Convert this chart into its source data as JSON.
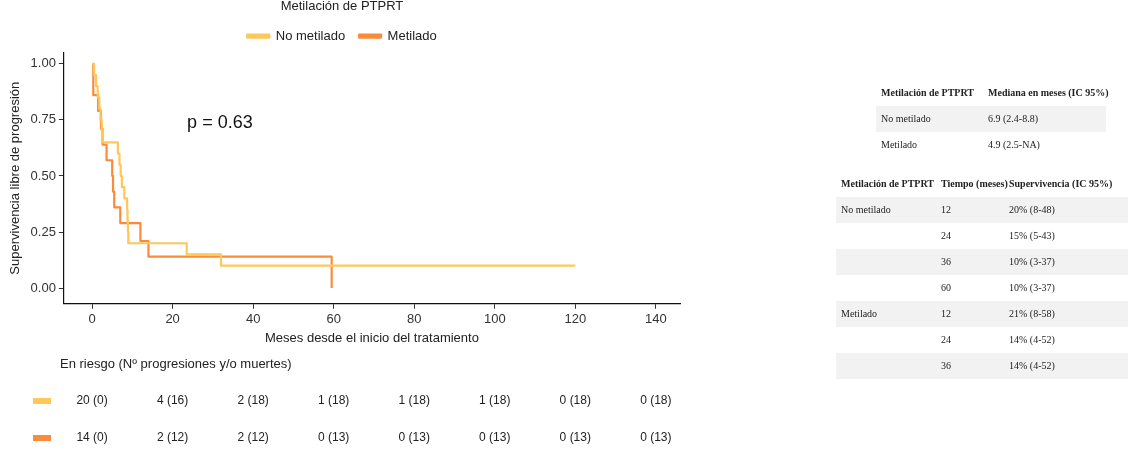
{
  "chart_data": [
    {
      "type": "step",
      "xlabel": "Meses desde el inicio del tratamiento",
      "ylabel": "Supervivencia libre de progresión",
      "legend_title": "Metilación de PTPRT",
      "legend": "top",
      "grid": false,
      "xlim": [
        -7,
        146
      ],
      "ylim": [
        -0.07,
        1.05
      ],
      "xticks": [
        0,
        20,
        40,
        60,
        80,
        100,
        120,
        140
      ],
      "yticks": [
        {
          "value": 0,
          "label": "0.00"
        },
        {
          "value": 0.25,
          "label": "0.25"
        },
        {
          "value": 0.5,
          "label": "0.50"
        },
        {
          "value": 0.75,
          "label": "0.75"
        },
        {
          "value": 1,
          "label": "1.00"
        }
      ],
      "annotations": [
        "p = 0.63"
      ],
      "series": [
        {
          "name": "No metilado",
          "color": "#fec75a",
          "x": [
            0,
            0.5,
            1,
            1.4,
            1.8,
            2.1,
            2.4,
            2.7,
            6.4,
            6.8,
            7.1,
            7.4,
            8.0,
            8.7,
            8.8,
            8.9,
            9.0,
            23.5,
            32,
            120
          ],
          "values": [
            1,
            0.95,
            0.9,
            0.85,
            0.8,
            0.75,
            0.7,
            0.65,
            0.6,
            0.55,
            0.5,
            0.45,
            0.4,
            0.35,
            0.3,
            0.25,
            0.2,
            0.15,
            0.1,
            0.1
          ]
        },
        {
          "name": "Metilado",
          "color": "#f98b3b",
          "x": [
            0.3,
            0.3,
            1.5,
            2.2,
            2.6,
            3.6,
            5.0,
            5.2,
            5.5,
            7.0,
            12,
            14,
            59.5
          ],
          "values": [
            1,
            0.86,
            0.79,
            0.71,
            0.64,
            0.57,
            0.5,
            0.43,
            0.36,
            0.29,
            0.21,
            0.14,
            0
          ]
        }
      ]
    },
    {
      "type": "other",
      "title": "En riesgo (Nº progresiones y/o muertes)",
      "annotations": [
        "20 (0)",
        "4 (16)",
        "2 (18)",
        "1 (18)",
        "1 (18)",
        "1 (18)",
        "0 (18)",
        "0 (18)",
        "14 (0)",
        "2 (12)",
        "2 (12)",
        "0 (13)",
        "0 (13)",
        "0 (13)",
        "0 (13)",
        "0 (13)"
      ]
    },
    {
      "type": "other",
      "annotations": [
        "Metilación de PTPRT",
        "Mediana en meses (IC 95%)",
        "No metilado",
        "6.9 (2.4-8.8)",
        "Metilado",
        "4.9 (2.5-NA)"
      ]
    },
    {
      "type": "other",
      "annotations": [
        "Metilación de PTPRT",
        "Tiempo (meses)",
        "Supervivencia (IC 95%)",
        "No metilado",
        "12",
        "20% (8-48)",
        null,
        "24",
        "15% (5-43)",
        null,
        "36",
        "10% (3-37)",
        null,
        "60",
        "10% (3-37)",
        "Metilado",
        "12",
        "21% (8-58)",
        null,
        "24",
        "14% (4-52)",
        null,
        "36",
        "14% (4-52)"
      ]
    }
  ]
}
